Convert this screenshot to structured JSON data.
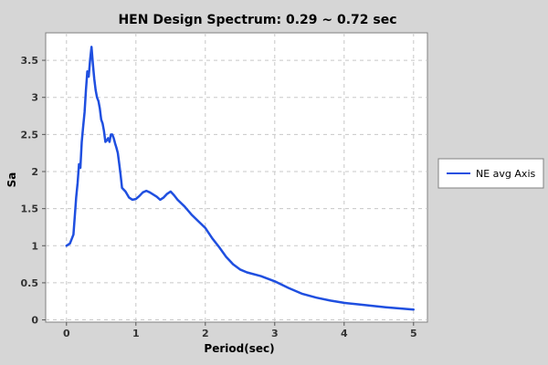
{
  "chart_data": {
    "type": "line",
    "title": "HEN Design Spectrum: 0.29 ~ 0.72 sec",
    "xlabel": "Period(sec)",
    "ylabel": "Sa",
    "xlim": [
      -0.3,
      5.2
    ],
    "ylim": [
      -0.03,
      3.87
    ],
    "x_ticks": [
      0,
      1,
      2,
      3,
      4,
      5
    ],
    "y_ticks": [
      0,
      0.5,
      1,
      1.5,
      2,
      2.5,
      3,
      3.5
    ],
    "grid": true,
    "legend_position": "right",
    "series": [
      {
        "name": "NE avg Axis",
        "color": "#1f4fe0",
        "x": [
          0,
          0.05,
          0.1,
          0.12,
          0.14,
          0.16,
          0.18,
          0.2,
          0.22,
          0.24,
          0.26,
          0.28,
          0.3,
          0.32,
          0.34,
          0.36,
          0.38,
          0.4,
          0.42,
          0.44,
          0.46,
          0.48,
          0.5,
          0.52,
          0.54,
          0.56,
          0.58,
          0.6,
          0.62,
          0.64,
          0.66,
          0.68,
          0.7,
          0.72,
          0.74,
          0.76,
          0.78,
          0.8,
          0.85,
          0.9,
          0.95,
          1.0,
          1.05,
          1.1,
          1.15,
          1.2,
          1.25,
          1.3,
          1.35,
          1.4,
          1.45,
          1.5,
          1.55,
          1.6,
          1.7,
          1.8,
          1.9,
          2.0,
          2.1,
          2.2,
          2.3,
          2.4,
          2.5,
          2.6,
          2.8,
          3.0,
          3.2,
          3.4,
          3.6,
          3.8,
          4.0,
          4.2,
          4.4,
          4.6,
          4.8,
          5.0
        ],
        "values": [
          1.0,
          1.03,
          1.15,
          1.4,
          1.65,
          1.85,
          2.1,
          2.05,
          2.4,
          2.6,
          2.8,
          3.1,
          3.35,
          3.28,
          3.5,
          3.68,
          3.45,
          3.25,
          3.1,
          3.0,
          2.95,
          2.85,
          2.7,
          2.65,
          2.55,
          2.4,
          2.42,
          2.45,
          2.4,
          2.5,
          2.5,
          2.45,
          2.38,
          2.32,
          2.25,
          2.1,
          1.95,
          1.78,
          1.73,
          1.65,
          1.62,
          1.63,
          1.67,
          1.72,
          1.74,
          1.72,
          1.69,
          1.66,
          1.62,
          1.65,
          1.7,
          1.73,
          1.68,
          1.62,
          1.53,
          1.42,
          1.33,
          1.24,
          1.1,
          0.98,
          0.85,
          0.75,
          0.68,
          0.64,
          0.59,
          0.52,
          0.43,
          0.35,
          0.3,
          0.26,
          0.23,
          0.21,
          0.19,
          0.17,
          0.155,
          0.14
        ]
      }
    ]
  }
}
